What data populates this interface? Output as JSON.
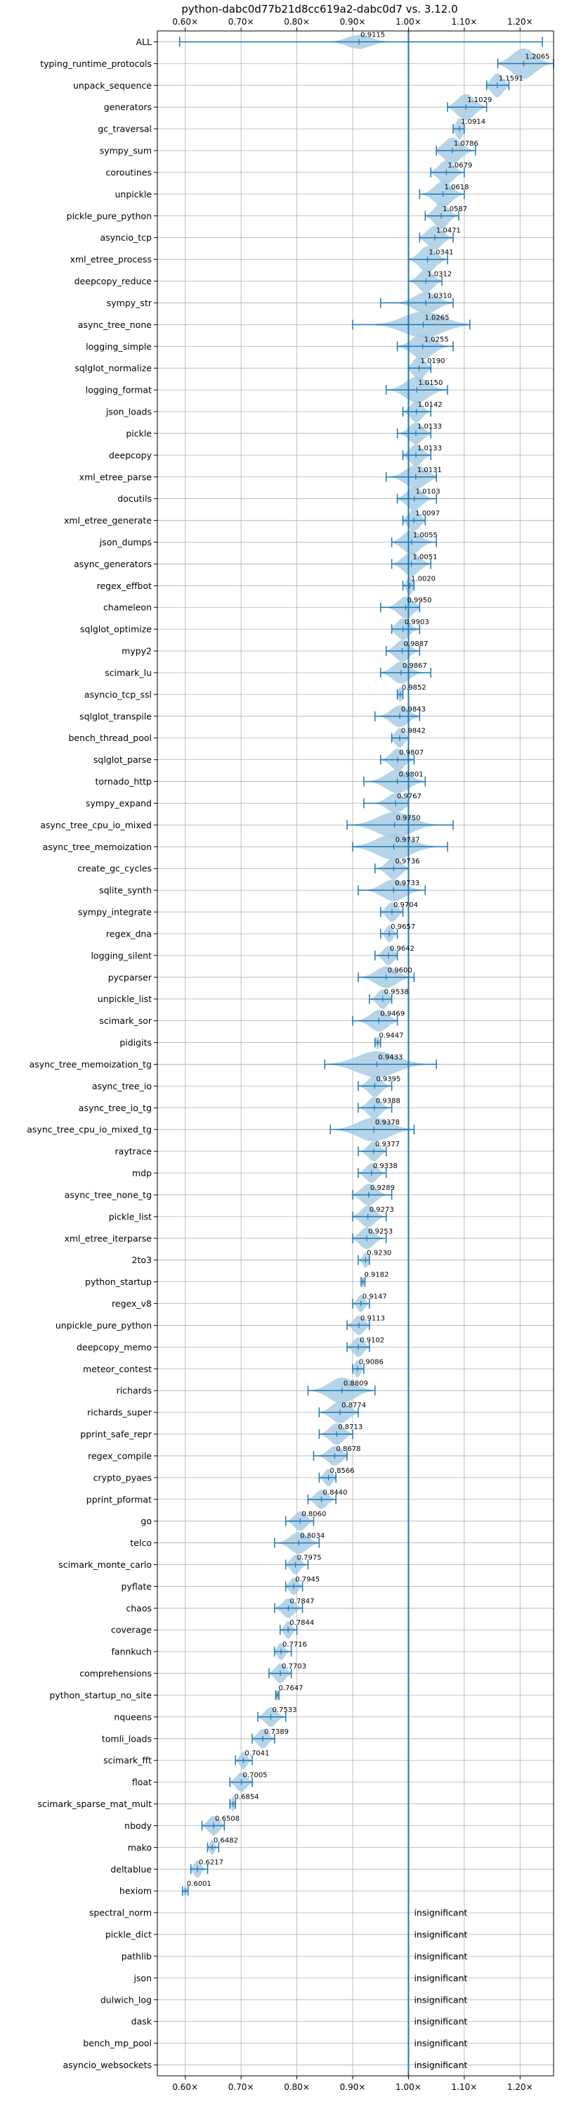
{
  "chart_data": {
    "type": "violin",
    "title": "python-dabc0d77b21d8cc619a2-dabc0d7 vs. 3.12.0",
    "xlabel": "",
    "ylabel": "",
    "xlim": [
      0.55,
      1.26
    ],
    "x_ticks": [
      0.6,
      0.7,
      0.8,
      0.9,
      1.0,
      1.1,
      1.2
    ],
    "x_tick_labels": [
      "0.60×",
      "0.70×",
      "0.80×",
      "0.90×",
      "1.00×",
      "1.10×",
      "1.20×"
    ],
    "reference_line": 1.0,
    "grid": true,
    "colors": {
      "violin": "#a9cce3",
      "line": "#1f77b4",
      "frame": "#000000",
      "grid": "#b0b0b0"
    },
    "benchmarks": [
      {
        "name": "ALL",
        "value": 0.9115,
        "label": "0.9115",
        "min": 0.59,
        "max": 1.24,
        "w": 0.34,
        "s": 0.02
      },
      {
        "name": "typing_runtime_protocols",
        "value": 1.2065,
        "label": "1.2065",
        "min": 1.16,
        "max": 1.26,
        "w": 0.7,
        "s": 0.02
      },
      {
        "name": "unpack_sequence",
        "value": 1.1591,
        "label": "1.1591",
        "min": 1.14,
        "max": 1.18,
        "w": 0.55,
        "s": 0.01
      },
      {
        "name": "generators",
        "value": 1.1029,
        "label": "1.1029",
        "min": 1.07,
        "max": 1.14,
        "w": 0.6,
        "s": 0.015
      },
      {
        "name": "gc_traversal",
        "value": 1.0914,
        "label": "1.0914",
        "min": 1.08,
        "max": 1.1,
        "w": 0.5,
        "s": 0.006
      },
      {
        "name": "sympy_sum",
        "value": 1.0786,
        "label": "1.0786",
        "min": 1.05,
        "max": 1.12,
        "w": 0.6,
        "s": 0.015
      },
      {
        "name": "coroutines",
        "value": 1.0679,
        "label": "1.0679",
        "min": 1.04,
        "max": 1.1,
        "w": 0.55,
        "s": 0.013
      },
      {
        "name": "unpickle",
        "value": 1.0618,
        "label": "1.0618",
        "min": 1.02,
        "max": 1.1,
        "w": 0.6,
        "s": 0.015
      },
      {
        "name": "pickle_pure_python",
        "value": 1.0587,
        "label": "1.0587",
        "min": 1.03,
        "max": 1.09,
        "w": 0.6,
        "s": 0.012
      },
      {
        "name": "asyncio_tcp",
        "value": 1.0471,
        "label": "1.0471",
        "min": 1.02,
        "max": 1.08,
        "w": 0.55,
        "s": 0.013
      },
      {
        "name": "xml_etree_process",
        "value": 1.0341,
        "label": "1.0341",
        "min": 1.0,
        "max": 1.07,
        "w": 0.6,
        "s": 0.014
      },
      {
        "name": "deepcopy_reduce",
        "value": 1.0312,
        "label": "1.0312",
        "min": 1.0,
        "max": 1.06,
        "w": 0.55,
        "s": 0.012
      },
      {
        "name": "sympy_str",
        "value": 1.031,
        "label": "1.0310",
        "min": 0.95,
        "max": 1.08,
        "w": 0.5,
        "s": 0.02
      },
      {
        "name": "async_tree_none",
        "value": 1.0265,
        "label": "1.0265",
        "min": 0.9,
        "max": 1.11,
        "w": 0.6,
        "s": 0.035
      },
      {
        "name": "logging_simple",
        "value": 1.0255,
        "label": "1.0255",
        "min": 0.98,
        "max": 1.08,
        "w": 0.6,
        "s": 0.018
      },
      {
        "name": "sqlglot_normalize",
        "value": 1.019,
        "label": "1.0190",
        "min": 1.0,
        "max": 1.04,
        "w": 0.55,
        "s": 0.01
      },
      {
        "name": "logging_format",
        "value": 1.015,
        "label": "1.0150",
        "min": 0.96,
        "max": 1.07,
        "w": 0.6,
        "s": 0.02
      },
      {
        "name": "json_loads",
        "value": 1.0142,
        "label": "1.0142",
        "min": 0.99,
        "max": 1.04,
        "w": 0.5,
        "s": 0.01
      },
      {
        "name": "pickle",
        "value": 1.0133,
        "label": "1.0133",
        "min": 0.98,
        "max": 1.04,
        "w": 0.5,
        "s": 0.012
      },
      {
        "name": "deepcopy",
        "value": 1.0133,
        "label": "1.0133",
        "min": 0.99,
        "max": 1.04,
        "w": 0.5,
        "s": 0.011
      },
      {
        "name": "xml_etree_parse",
        "value": 1.0131,
        "label": "1.0131",
        "min": 0.96,
        "max": 1.05,
        "w": 0.55,
        "s": 0.018
      },
      {
        "name": "docutils",
        "value": 1.0103,
        "label": "1.0103",
        "min": 0.98,
        "max": 1.05,
        "w": 0.55,
        "s": 0.013
      },
      {
        "name": "xml_etree_generate",
        "value": 1.0097,
        "label": "1.0097",
        "min": 0.99,
        "max": 1.03,
        "w": 0.5,
        "s": 0.01
      },
      {
        "name": "json_dumps",
        "value": 1.0055,
        "label": "1.0055",
        "min": 0.97,
        "max": 1.05,
        "w": 0.55,
        "s": 0.015
      },
      {
        "name": "async_generators",
        "value": 1.0051,
        "label": "1.0051",
        "min": 0.97,
        "max": 1.04,
        "w": 0.55,
        "s": 0.014
      },
      {
        "name": "regex_effbot",
        "value": 1.002,
        "label": "1.0020",
        "min": 0.99,
        "max": 1.01,
        "w": 0.45,
        "s": 0.005
      },
      {
        "name": "chameleon",
        "value": 0.995,
        "label": "0.9950",
        "min": 0.95,
        "max": 1.02,
        "w": 0.5,
        "s": 0.013
      },
      {
        "name": "sqlglot_optimize",
        "value": 0.9903,
        "label": "0.9903",
        "min": 0.97,
        "max": 1.02,
        "w": 0.5,
        "s": 0.011
      },
      {
        "name": "mypy2",
        "value": 0.9887,
        "label": "0.9887",
        "min": 0.96,
        "max": 1.02,
        "w": 0.5,
        "s": 0.012
      },
      {
        "name": "scimark_lu",
        "value": 0.9867,
        "label": "0.9867",
        "min": 0.95,
        "max": 1.04,
        "w": 0.5,
        "s": 0.015
      },
      {
        "name": "asyncio_tcp_ssl",
        "value": 0.9852,
        "label": "0.9852",
        "min": 0.98,
        "max": 0.99,
        "w": 0.35,
        "s": 0.004
      },
      {
        "name": "sqlglot_transpile",
        "value": 0.9843,
        "label": "0.9843",
        "min": 0.94,
        "max": 1.02,
        "w": 0.5,
        "s": 0.015
      },
      {
        "name": "bench_thread_pool",
        "value": 0.9842,
        "label": "0.9842",
        "min": 0.97,
        "max": 1.0,
        "w": 0.45,
        "s": 0.008
      },
      {
        "name": "sqlglot_parse",
        "value": 0.9807,
        "label": "0.9807",
        "min": 0.95,
        "max": 1.01,
        "w": 0.5,
        "s": 0.012
      },
      {
        "name": "tornado_http",
        "value": 0.9801,
        "label": "0.9801",
        "min": 0.92,
        "max": 1.03,
        "w": 0.55,
        "s": 0.02
      },
      {
        "name": "sympy_expand",
        "value": 0.9767,
        "label": "0.9767",
        "min": 0.92,
        "max": 1.0,
        "w": 0.45,
        "s": 0.015
      },
      {
        "name": "async_tree_cpu_io_mixed",
        "value": 0.975,
        "label": "0.9750",
        "min": 0.89,
        "max": 1.08,
        "w": 0.6,
        "s": 0.03
      },
      {
        "name": "async_tree_memoization",
        "value": 0.9737,
        "label": "0.9737",
        "min": 0.9,
        "max": 1.07,
        "w": 0.6,
        "s": 0.03
      },
      {
        "name": "create_gc_cycles",
        "value": 0.9736,
        "label": "0.9736",
        "min": 0.94,
        "max": 1.0,
        "w": 0.5,
        "s": 0.012
      },
      {
        "name": "sqlite_synth",
        "value": 0.9733,
        "label": "0.9733",
        "min": 0.91,
        "max": 1.03,
        "w": 0.5,
        "s": 0.02
      },
      {
        "name": "sympy_integrate",
        "value": 0.9704,
        "label": "0.9704",
        "min": 0.95,
        "max": 0.99,
        "w": 0.45,
        "s": 0.009
      },
      {
        "name": "regex_dna",
        "value": 0.9657,
        "label": "0.9657",
        "min": 0.95,
        "max": 0.98,
        "w": 0.4,
        "s": 0.006
      },
      {
        "name": "logging_silent",
        "value": 0.9642,
        "label": "0.9642",
        "min": 0.94,
        "max": 0.98,
        "w": 0.45,
        "s": 0.009
      },
      {
        "name": "pycparser",
        "value": 0.96,
        "label": "0.9600",
        "min": 0.91,
        "max": 1.01,
        "w": 0.5,
        "s": 0.018
      },
      {
        "name": "unpickle_list",
        "value": 0.9538,
        "label": "0.9538",
        "min": 0.93,
        "max": 0.97,
        "w": 0.45,
        "s": 0.009
      },
      {
        "name": "scimark_sor",
        "value": 0.9469,
        "label": "0.9469",
        "min": 0.9,
        "max": 0.98,
        "w": 0.5,
        "s": 0.015
      },
      {
        "name": "pidigits",
        "value": 0.9447,
        "label": "0.9447",
        "min": 0.94,
        "max": 0.95,
        "w": 0.3,
        "s": 0.003
      },
      {
        "name": "async_tree_memoization_tg",
        "value": 0.9433,
        "label": "0.9433",
        "min": 0.85,
        "max": 1.05,
        "w": 0.6,
        "s": 0.035
      },
      {
        "name": "async_tree_io",
        "value": 0.9395,
        "label": "0.9395",
        "min": 0.91,
        "max": 0.97,
        "w": 0.5,
        "s": 0.011
      },
      {
        "name": "async_tree_io_tg",
        "value": 0.9388,
        "label": "0.9388",
        "min": 0.91,
        "max": 0.97,
        "w": 0.5,
        "s": 0.011
      },
      {
        "name": "async_tree_cpu_io_mixed_tg",
        "value": 0.9378,
        "label": "0.9378",
        "min": 0.86,
        "max": 1.01,
        "w": 0.55,
        "s": 0.028
      },
      {
        "name": "raytrace",
        "value": 0.9377,
        "label": "0.9377",
        "min": 0.91,
        "max": 0.96,
        "w": 0.45,
        "s": 0.01
      },
      {
        "name": "mdp",
        "value": 0.9338,
        "label": "0.9338",
        "min": 0.91,
        "max": 0.96,
        "w": 0.45,
        "s": 0.01
      },
      {
        "name": "async_tree_none_tg",
        "value": 0.9289,
        "label": "0.9289",
        "min": 0.9,
        "max": 0.97,
        "w": 0.5,
        "s": 0.013
      },
      {
        "name": "pickle_list",
        "value": 0.9273,
        "label": "0.9273",
        "min": 0.9,
        "max": 0.96,
        "w": 0.5,
        "s": 0.012
      },
      {
        "name": "xml_etree_iterparse",
        "value": 0.9253,
        "label": "0.9253",
        "min": 0.9,
        "max": 0.96,
        "w": 0.5,
        "s": 0.012
      },
      {
        "name": "2to3",
        "value": 0.923,
        "label": "0.9230",
        "min": 0.91,
        "max": 0.93,
        "w": 0.35,
        "s": 0.005
      },
      {
        "name": "python_startup",
        "value": 0.9182,
        "label": "0.9182",
        "min": 0.915,
        "max": 0.922,
        "w": 0.25,
        "s": 0.002
      },
      {
        "name": "regex_v8",
        "value": 0.9147,
        "label": "0.9147",
        "min": 0.9,
        "max": 0.93,
        "w": 0.4,
        "s": 0.006
      },
      {
        "name": "unpickle_pure_python",
        "value": 0.9113,
        "label": "0.9113",
        "min": 0.89,
        "max": 0.93,
        "w": 0.45,
        "s": 0.009
      },
      {
        "name": "deepcopy_memo",
        "value": 0.9102,
        "label": "0.9102",
        "min": 0.89,
        "max": 0.93,
        "w": 0.45,
        "s": 0.009
      },
      {
        "name": "meteor_contest",
        "value": 0.9086,
        "label": "0.9086",
        "min": 0.9,
        "max": 0.92,
        "w": 0.4,
        "s": 0.005
      },
      {
        "name": "richards",
        "value": 0.8809,
        "label": "0.8809",
        "min": 0.82,
        "max": 0.94,
        "w": 0.6,
        "s": 0.022
      },
      {
        "name": "richards_super",
        "value": 0.8774,
        "label": "0.8774",
        "min": 0.84,
        "max": 0.91,
        "w": 0.5,
        "s": 0.015
      },
      {
        "name": "pprint_safe_repr",
        "value": 0.8713,
        "label": "0.8713",
        "min": 0.84,
        "max": 0.9,
        "w": 0.5,
        "s": 0.012
      },
      {
        "name": "regex_compile",
        "value": 0.8678,
        "label": "0.8678",
        "min": 0.83,
        "max": 0.89,
        "w": 0.45,
        "s": 0.012
      },
      {
        "name": "crypto_pyaes",
        "value": 0.8566,
        "label": "0.8566",
        "min": 0.84,
        "max": 0.87,
        "w": 0.4,
        "s": 0.007
      },
      {
        "name": "pprint_pformat",
        "value": 0.844,
        "label": "0.8440",
        "min": 0.82,
        "max": 0.87,
        "w": 0.45,
        "s": 0.01
      },
      {
        "name": "go",
        "value": 0.806,
        "label": "0.8060",
        "min": 0.78,
        "max": 0.83,
        "w": 0.45,
        "s": 0.01
      },
      {
        "name": "telco",
        "value": 0.8034,
        "label": "0.8034",
        "min": 0.76,
        "max": 0.84,
        "w": 0.5,
        "s": 0.015
      },
      {
        "name": "scimark_monte_carlo",
        "value": 0.7975,
        "label": "0.7975",
        "min": 0.78,
        "max": 0.82,
        "w": 0.45,
        "s": 0.008
      },
      {
        "name": "pyflate",
        "value": 0.7945,
        "label": "0.7945",
        "min": 0.78,
        "max": 0.81,
        "w": 0.4,
        "s": 0.007
      },
      {
        "name": "chaos",
        "value": 0.7847,
        "label": "0.7847",
        "min": 0.76,
        "max": 0.81,
        "w": 0.45,
        "s": 0.01
      },
      {
        "name": "coverage",
        "value": 0.7844,
        "label": "0.7844",
        "min": 0.77,
        "max": 0.8,
        "w": 0.4,
        "s": 0.006
      },
      {
        "name": "fannkuch",
        "value": 0.7716,
        "label": "0.7716",
        "min": 0.76,
        "max": 0.79,
        "w": 0.4,
        "s": 0.006
      },
      {
        "name": "comprehensions",
        "value": 0.7703,
        "label": "0.7703",
        "min": 0.75,
        "max": 0.79,
        "w": 0.45,
        "s": 0.009
      },
      {
        "name": "python_startup_no_site",
        "value": 0.7647,
        "label": "0.7647",
        "min": 0.762,
        "max": 0.768,
        "w": 0.25,
        "s": 0.002
      },
      {
        "name": "nqueens",
        "value": 0.7533,
        "label": "0.7533",
        "min": 0.73,
        "max": 0.78,
        "w": 0.45,
        "s": 0.01
      },
      {
        "name": "tomli_loads",
        "value": 0.7389,
        "label": "0.7389",
        "min": 0.72,
        "max": 0.76,
        "w": 0.45,
        "s": 0.009
      },
      {
        "name": "scimark_fft",
        "value": 0.7041,
        "label": "0.7041",
        "min": 0.69,
        "max": 0.72,
        "w": 0.4,
        "s": 0.006
      },
      {
        "name": "float",
        "value": 0.7005,
        "label": "0.7005",
        "min": 0.68,
        "max": 0.72,
        "w": 0.45,
        "s": 0.009
      },
      {
        "name": "scimark_sparse_mat_mult",
        "value": 0.6854,
        "label": "0.6854",
        "min": 0.68,
        "max": 0.69,
        "w": 0.35,
        "s": 0.003
      },
      {
        "name": "nbody",
        "value": 0.6508,
        "label": "0.6508",
        "min": 0.63,
        "max": 0.67,
        "w": 0.45,
        "s": 0.009
      },
      {
        "name": "mako",
        "value": 0.6482,
        "label": "0.6482",
        "min": 0.64,
        "max": 0.66,
        "w": 0.35,
        "s": 0.004
      },
      {
        "name": "deltablue",
        "value": 0.6217,
        "label": "0.6217",
        "min": 0.61,
        "max": 0.64,
        "w": 0.4,
        "s": 0.006
      },
      {
        "name": "hexiom",
        "value": 0.6001,
        "label": "0.6001",
        "min": 0.595,
        "max": 0.605,
        "w": 0.3,
        "s": 0.002
      },
      {
        "name": "spectral_norm",
        "label": "insignificant"
      },
      {
        "name": "pickle_dict",
        "label": "insignificant"
      },
      {
        "name": "pathlib",
        "label": "insignificant"
      },
      {
        "name": "json",
        "label": "insignificant"
      },
      {
        "name": "dulwich_log",
        "label": "insignificant"
      },
      {
        "name": "dask",
        "label": "insignificant"
      },
      {
        "name": "bench_mp_pool",
        "label": "insignificant"
      },
      {
        "name": "asyncio_websockets",
        "label": "insignificant"
      }
    ]
  }
}
